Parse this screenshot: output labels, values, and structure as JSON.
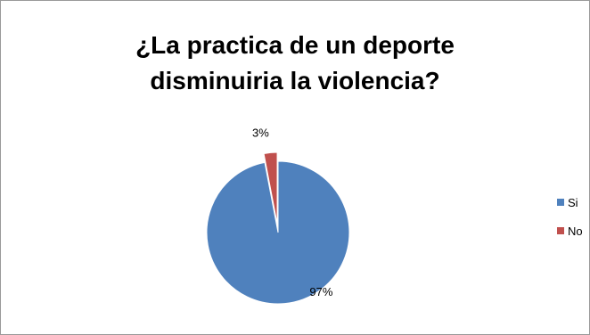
{
  "chart_data": {
    "type": "pie",
    "title_lines": [
      "¿La practica de un deporte",
      "disminuiria la violencia?"
    ],
    "categories": [
      "Si",
      "No"
    ],
    "values": [
      97,
      3
    ],
    "data_labels": [
      "97%",
      "3%"
    ],
    "colors": [
      "#4F81BD",
      "#C0504D"
    ],
    "exploded": "No",
    "legend_position": "right"
  }
}
